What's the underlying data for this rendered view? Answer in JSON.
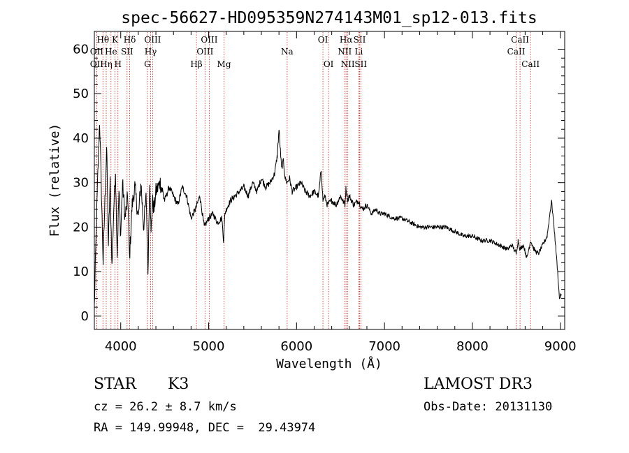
{
  "chart_data": {
    "type": "line",
    "title": "spec-56627-HD095359N274143M01_sp12-013.fits",
    "xlabel": "Wavelength (Å)",
    "ylabel": "Flux (relative)",
    "xlim": [
      3700,
      9050
    ],
    "ylim": [
      -3,
      64
    ],
    "xticks": [
      4000,
      5000,
      6000,
      7000,
      8000,
      9000
    ],
    "yticks": [
      0,
      10,
      20,
      30,
      40,
      50,
      60
    ],
    "grid": false,
    "series": [
      {
        "name": "flux",
        "x": [
          3700,
          3720,
          3740,
          3760,
          3780,
          3800,
          3820,
          3840,
          3860,
          3880,
          3900,
          3920,
          3940,
          3960,
          3980,
          4000,
          4020,
          4050,
          4080,
          4100,
          4130,
          4160,
          4200,
          4230,
          4260,
          4290,
          4310,
          4330,
          4345,
          4360,
          4380,
          4400,
          4450,
          4500,
          4550,
          4600,
          4650,
          4700,
          4750,
          4800,
          4850,
          4900,
          4950,
          5000,
          5050,
          5100,
          5150,
          5170,
          5185,
          5200,
          5250,
          5300,
          5350,
          5400,
          5450,
          5500,
          5550,
          5600,
          5650,
          5700,
          5750,
          5780,
          5800,
          5830,
          5850,
          5870,
          5893,
          5920,
          5950,
          6000,
          6050,
          6100,
          6150,
          6200,
          6250,
          6280,
          6300,
          6320,
          6350,
          6400,
          6450,
          6500,
          6550,
          6563,
          6580,
          6600,
          6650,
          6700,
          6750,
          6800,
          6850,
          6900,
          6950,
          7000,
          7100,
          7200,
          7300,
          7400,
          7500,
          7600,
          7700,
          7800,
          7900,
          8000,
          8100,
          8200,
          8300,
          8400,
          8450,
          8498,
          8520,
          8542,
          8580,
          8620,
          8662,
          8700,
          8750,
          8800,
          8850,
          8900,
          8920,
          8950,
          8970,
          8990,
          9010
        ],
        "y": [
          2,
          18,
          32,
          44,
          28,
          12,
          26,
          38,
          16,
          30,
          11,
          24,
          33,
          14,
          28,
          18,
          30,
          22,
          27,
          13,
          25,
          29,
          22,
          30,
          20,
          27,
          10,
          31,
          18,
          26,
          24,
          28,
          30,
          26,
          29,
          27,
          25,
          29,
          27,
          22,
          24,
          27,
          20,
          22,
          23,
          21,
          22,
          17,
          23,
          24,
          26,
          27,
          28,
          29,
          27,
          30,
          28,
          31,
          29,
          30,
          32,
          36,
          42,
          33,
          35,
          31,
          30,
          31,
          28,
          29,
          30,
          28,
          27,
          28,
          27,
          33,
          26,
          27,
          25,
          26,
          25,
          27,
          25,
          29,
          26,
          27,
          25,
          26,
          24,
          25,
          23,
          24,
          23,
          23,
          22,
          22,
          21,
          20,
          20,
          20,
          20,
          19,
          18,
          18,
          17,
          17,
          16,
          15,
          16,
          14,
          17,
          15,
          16,
          13,
          17,
          15,
          14,
          16,
          18,
          26,
          22,
          15,
          10,
          4,
          5
        ]
      }
    ],
    "lines": [
      {
        "label": "Hθ",
        "x": 3798,
        "row": 1
      },
      {
        "label": "OII",
        "x": 3727,
        "row": 2
      },
      {
        "label": "OII",
        "x": 3727,
        "row": 3
      },
      {
        "label": "Hη",
        "x": 3835,
        "row": 3
      },
      {
        "label": "He",
        "x": 3889,
        "row": 2
      },
      {
        "label": "K",
        "x": 3934,
        "row": 1
      },
      {
        "label": "H",
        "x": 3968,
        "row": 3
      },
      {
        "label": "SII",
        "x": 4072,
        "row": 2
      },
      {
        "label": "Hδ",
        "x": 4102,
        "row": 1
      },
      {
        "label": "OIII",
        "x": 4363,
        "row": 1
      },
      {
        "label": "Hγ",
        "x": 4340,
        "row": 2
      },
      {
        "label": "G",
        "x": 4304,
        "row": 3
      },
      {
        "label": "Hβ",
        "x": 4861,
        "row": 3
      },
      {
        "label": "OIII",
        "x": 4959,
        "row": 2
      },
      {
        "label": "OIII",
        "x": 5007,
        "row": 1
      },
      {
        "label": "Mg",
        "x": 5175,
        "row": 3
      },
      {
        "label": "Na",
        "x": 5893,
        "row": 2
      },
      {
        "label": "OI",
        "x": 6300,
        "row": 1
      },
      {
        "label": "OI",
        "x": 6364,
        "row": 3
      },
      {
        "label": "NII",
        "x": 6548,
        "row": 2
      },
      {
        "label": "Hα",
        "x": 6563,
        "row": 1
      },
      {
        "label": "NII",
        "x": 6583,
        "row": 3
      },
      {
        "label": "Li",
        "x": 6708,
        "row": 2
      },
      {
        "label": "SII",
        "x": 6717,
        "row": 1
      },
      {
        "label": "SII",
        "x": 6731,
        "row": 3
      },
      {
        "label": "CaII",
        "x": 8498,
        "row": 2
      },
      {
        "label": "CaII",
        "x": 8542,
        "row": 1
      },
      {
        "label": "CaII",
        "x": 8662,
        "row": 3
      }
    ]
  },
  "info": {
    "object_type": "STAR",
    "object_class": "K3",
    "survey": "LAMOST DR3",
    "cz": "cz = 26.2 ± 8.7 km/s",
    "obs_date": "Obs-Date: 20131130",
    "radec": "RA = 149.99948, DEC =  29.43974"
  },
  "colors": {
    "spectrum": "#000000",
    "line_markers": "#cc3b3b",
    "frame": "#000000"
  }
}
